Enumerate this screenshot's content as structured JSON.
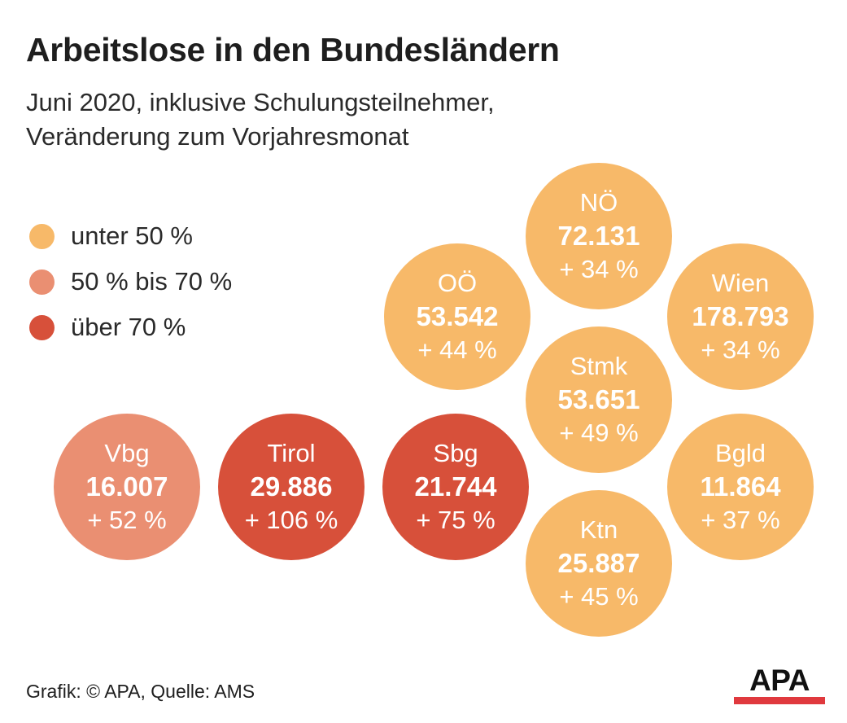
{
  "title": "Arbeitslose in den Bundesländern",
  "subtitle": [
    "Juni 2020, inklusive Schulungsteilnehmer,",
    "Veränderung zum Vorjahresmonat"
  ],
  "legend": [
    {
      "label": "unter 50 %",
      "color": "#f7b969"
    },
    {
      "label": "50 % bis 70 %",
      "color": "#ea8f72"
    },
    {
      "label": "über 70 %",
      "color": "#d7503a"
    }
  ],
  "chart_data": {
    "type": "bubble",
    "title": "Arbeitslose in den Bundesländern",
    "subtitle": "Juni 2020, inklusive Schulungsteilnehmer, Veränderung zum Vorjahresmonat",
    "series": [
      {
        "name": "Vbg",
        "value": "16.007",
        "change": "+ 52 %",
        "category": "50 % bis 70 %"
      },
      {
        "name": "Tirol",
        "value": "29.886",
        "change": "+ 106 %",
        "category": "über 70 %"
      },
      {
        "name": "Sbg",
        "value": "21.744",
        "change": "+ 75 %",
        "category": "über 70 %"
      },
      {
        "name": "OÖ",
        "value": "53.542",
        "change": "+ 44 %",
        "category": "unter 50 %"
      },
      {
        "name": "NÖ",
        "value": "72.131",
        "change": "+ 34 %",
        "category": "unter 50 %"
      },
      {
        "name": "Wien",
        "value": "178.793",
        "change": "+ 34 %",
        "category": "unter 50 %"
      },
      {
        "name": "Stmk",
        "value": "53.651",
        "change": "+ 49 %",
        "category": "unter 50 %"
      },
      {
        "name": "Bgld",
        "value": "11.864",
        "change": "+ 37 %",
        "category": "unter 50 %"
      },
      {
        "name": "Ktn",
        "value": "25.887",
        "change": "+ 45 %",
        "category": "unter 50 %"
      }
    ]
  },
  "footer": "Grafik: © APA, Quelle: AMS",
  "logo": {
    "text": "APA",
    "bar_color": "#e0393e"
  }
}
